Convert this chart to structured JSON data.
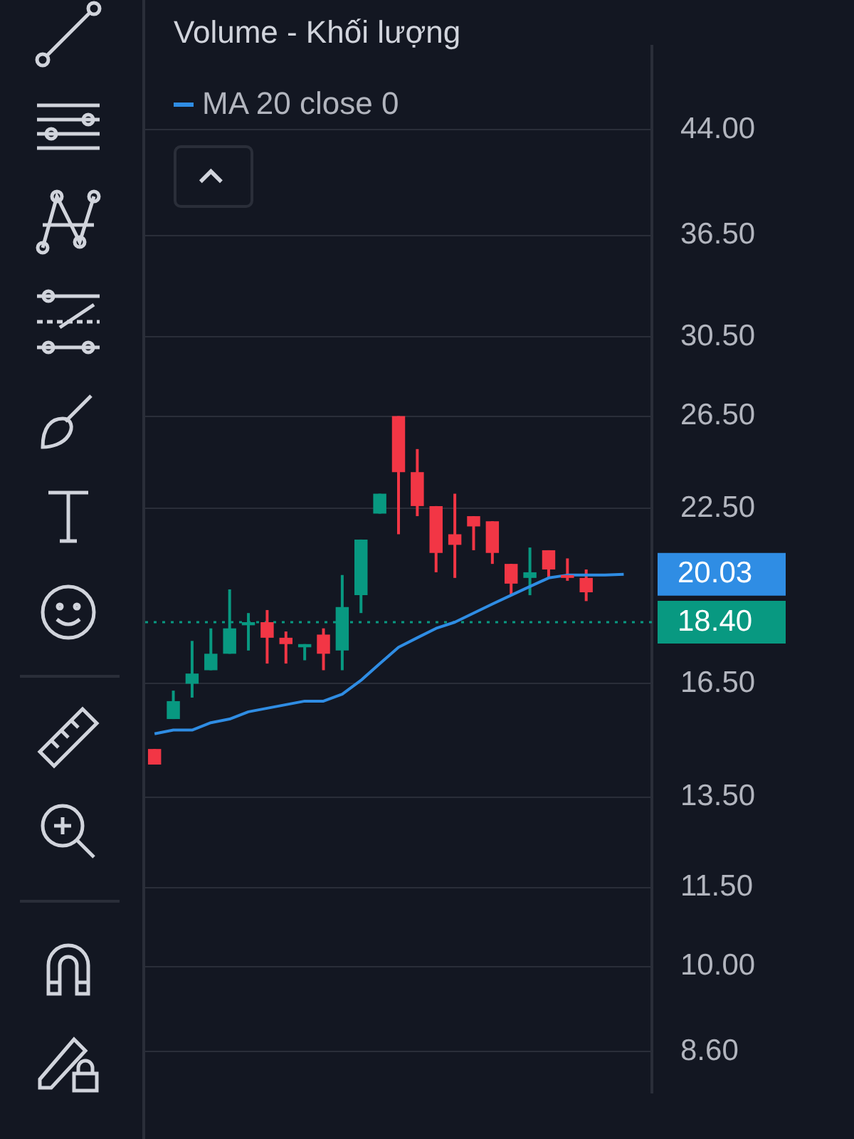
{
  "chart_data": {
    "type": "candlestick",
    "categories": [
      null,
      null,
      null,
      null,
      null,
      null,
      null,
      null,
      null,
      null,
      null,
      null,
      null,
      null,
      null,
      null,
      null,
      null,
      null,
      null,
      null,
      null,
      null,
      null,
      null,
      null,
      null
    ],
    "ohlc": [
      [
        14.7,
        14.7,
        14.3,
        14.3
      ],
      [
        15.5,
        16.3,
        15.5,
        16.0
      ],
      [
        16.5,
        17.8,
        16.1,
        16.8
      ],
      [
        16.9,
        18.2,
        16.9,
        17.4
      ],
      [
        17.4,
        19.5,
        17.4,
        18.2
      ],
      [
        18.3,
        18.7,
        17.5,
        18.4
      ],
      [
        18.4,
        18.8,
        17.1,
        17.9
      ],
      [
        17.9,
        18.1,
        17.1,
        17.7
      ],
      [
        17.6,
        17.7,
        17.2,
        17.7
      ],
      [
        18.0,
        18.2,
        16.9,
        17.4
      ],
      [
        17.5,
        20.0,
        16.9,
        18.9
      ],
      [
        19.3,
        21.3,
        18.7,
        21.3
      ],
      [
        22.3,
        23.1,
        22.3,
        23.1
      ],
      [
        26.5,
        26.5,
        21.5,
        24.0
      ],
      [
        24.0,
        25.0,
        22.2,
        22.6
      ],
      [
        22.6,
        22.6,
        20.1,
        20.8
      ],
      [
        21.5,
        23.1,
        19.9,
        21.1
      ],
      [
        22.2,
        22.2,
        20.9,
        21.8
      ],
      [
        22.0,
        22.0,
        20.4,
        20.8
      ],
      [
        20.4,
        20.4,
        19.3,
        19.7
      ],
      [
        19.9,
        21.0,
        19.3,
        20.1
      ],
      [
        20.9,
        20.9,
        19.9,
        20.2
      ],
      [
        20.0,
        20.6,
        19.8,
        19.9
      ],
      [
        19.9,
        20.2,
        19.1,
        19.4
      ],
      null,
      null,
      null
    ],
    "colors": [
      "#f23645",
      "#089981",
      "#089981",
      "#089981",
      "#089981",
      "#089981",
      "#f23645",
      "#f23645",
      "#089981",
      "#f23645",
      "#089981",
      "#089981",
      "#089981",
      "#f23645",
      "#f23645",
      "#f23645",
      "#f23645",
      "#f23645",
      "#f23645",
      "#f23645",
      "#089981",
      "#f23645",
      "#f23645",
      "#f23645",
      null,
      null,
      null
    ],
    "series": [
      {
        "name": "MA 20 close 0",
        "type": "line",
        "color": "#2f8de4",
        "values": [
          15.1,
          15.2,
          15.2,
          15.4,
          15.5,
          15.7,
          15.8,
          15.9,
          16.0,
          16.0,
          16.2,
          16.6,
          17.1,
          17.6,
          17.9,
          18.2,
          18.4,
          18.7,
          19.0,
          19.3,
          19.6,
          19.9,
          20.0,
          20.0,
          20.0,
          20.03,
          null
        ],
        "value_labels": [
          null,
          null,
          null,
          null,
          null,
          null,
          null,
          null,
          null,
          null,
          null,
          null,
          null,
          null,
          null,
          null,
          null,
          null,
          null,
          null,
          null,
          null,
          null,
          null,
          null,
          "20.03",
          null
        ]
      }
    ],
    "log": true,
    "ylim": [
      8.0,
      51
    ],
    "yticks": [
      {
        "value": 44,
        "label": "44.00"
      },
      {
        "value": 36.5,
        "label": "36.50"
      },
      {
        "value": 30.5,
        "label": "30.50"
      },
      {
        "value": 26.5,
        "label": "26.50"
      },
      {
        "value": 22.5,
        "label": "22.50"
      },
      {
        "value": 16.5,
        "label": "16.50"
      },
      {
        "value": 13.5,
        "label": "13.50"
      },
      {
        "value": 11.5,
        "label": "11.50"
      },
      {
        "value": 10,
        "label": "10.00"
      },
      {
        "value": 8.6,
        "label": "8.60"
      }
    ],
    "grid": "y",
    "legend": "top left",
    "ref_lines": [
      {
        "axis": "y",
        "value": 18.4,
        "label": "18.40",
        "color": "#089981",
        "line_style": "dotted"
      }
    ],
    "annotations": [
      "Volume - Khối lượng"
    ]
  }
}
